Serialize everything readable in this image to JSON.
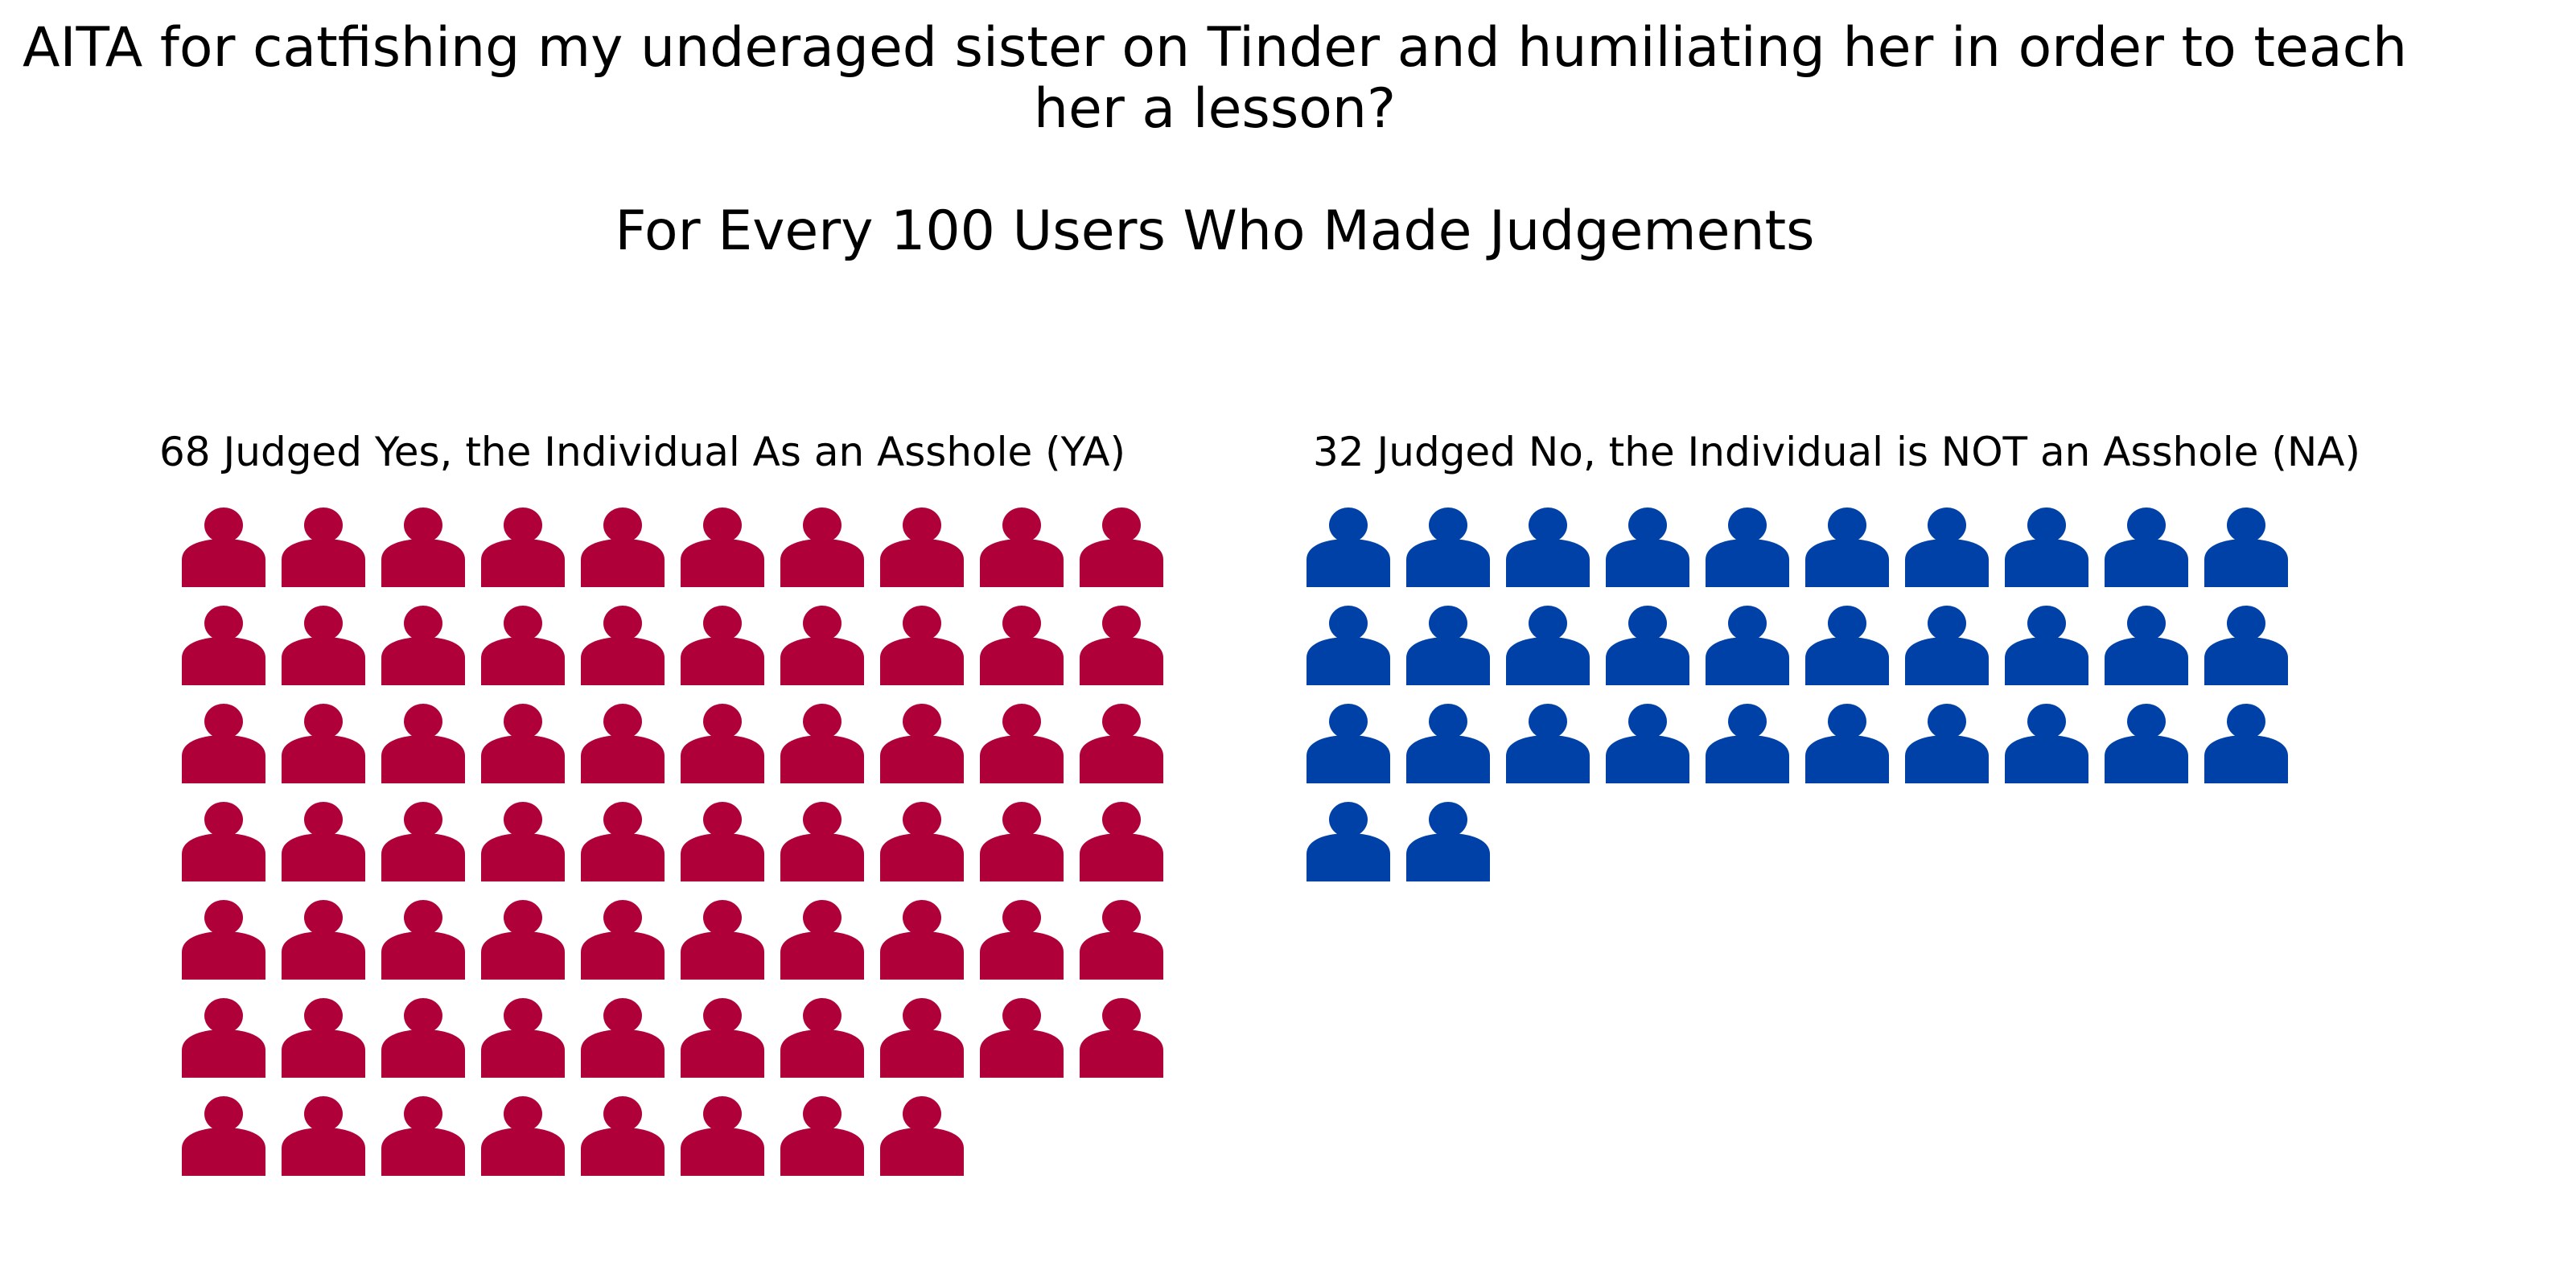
{
  "title": "AITA for catfishing my underaged sister on Tinder and humiliating her in order to teach her a lesson?",
  "subtitle": "For Every 100 Users Who Made Judgements",
  "colors": {
    "yes": "#b0003a",
    "no": "#0041a8"
  },
  "chart_data": {
    "type": "pictogram",
    "title": "AITA for catfishing my underaged sister on Tinder and humiliating her in order to teach her a lesson?",
    "subtitle": "For Every 100 Users Who Made Judgements",
    "icon": "person-icon",
    "columns": 10,
    "panels": [
      {
        "label": "68 Judged Yes, the Individual As an Asshole (YA)",
        "category": "YA",
        "value": 68,
        "color": "#b0003a"
      },
      {
        "label": "32 Judged No, the Individual is NOT an Asshole (NA)",
        "category": "NA",
        "value": 32,
        "color": "#0041a8"
      }
    ]
  }
}
